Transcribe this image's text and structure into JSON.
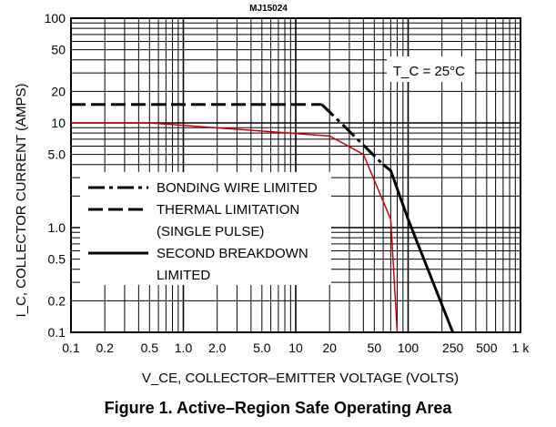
{
  "part_number": "MJ15024",
  "caption": "Figure 1. Active–Region Safe Operating Area",
  "chart_data": {
    "type": "line",
    "title": "MJ15024",
    "xlabel": "V_CE, COLLECTOR–EMITTER VOLTAGE (VOLTS)",
    "ylabel": "I_C, COLLECTOR CURRENT (AMPS)",
    "x_scale": "log",
    "y_scale": "log",
    "xlim": [
      0.1,
      1000
    ],
    "ylim": [
      0.1,
      100
    ],
    "grid": true,
    "x_ticks": [
      {
        "value": 0.1,
        "label": "0.1"
      },
      {
        "value": 0.2,
        "label": "0.2"
      },
      {
        "value": 0.5,
        "label": "0.5"
      },
      {
        "value": 1,
        "label": "1.0"
      },
      {
        "value": 2,
        "label": "2.0"
      },
      {
        "value": 5,
        "label": "5.0"
      },
      {
        "value": 10,
        "label": "10"
      },
      {
        "value": 20,
        "label": "20"
      },
      {
        "value": 50,
        "label": "50"
      },
      {
        "value": 100,
        "label": "100"
      },
      {
        "value": 250,
        "label": "250"
      },
      {
        "value": 500,
        "label": "500"
      },
      {
        "value": 1000,
        "label": "1 k"
      }
    ],
    "y_ticks": [
      {
        "value": 0.1,
        "label": "0.1"
      },
      {
        "value": 0.2,
        "label": "0.2"
      },
      {
        "value": 0.5,
        "label": "0.5"
      },
      {
        "value": 1,
        "label": "1.0"
      },
      {
        "value": 5,
        "label": "5.0"
      },
      {
        "value": 10,
        "label": "10"
      },
      {
        "value": 20,
        "label": "20"
      },
      {
        "value": 50,
        "label": "50"
      },
      {
        "value": 100,
        "label": "100"
      }
    ],
    "annotation": "T_C = 25°C",
    "legend_placement": "bottom-left",
    "legend": [
      {
        "style": "dash-dot",
        "label": "BONDING WIRE LIMITED"
      },
      {
        "style": "dashed",
        "label": "THERMAL LIMITATION"
      },
      {
        "style": "none",
        "label": "(SINGLE PULSE)"
      },
      {
        "style": "solid",
        "label": "SECOND BREAKDOWN"
      },
      {
        "style": "none",
        "label": "LIMITED"
      }
    ],
    "series": [
      {
        "style": "dashed",
        "color": "#000000",
        "x": [
          0.1,
          17
        ],
        "y": [
          15,
          15
        ]
      },
      {
        "style": "dash-dot",
        "color": "#000000",
        "x": [
          17,
          23,
          60
        ],
        "y": [
          15,
          11,
          4.0
        ]
      },
      {
        "style": "solid",
        "color": "#000000",
        "x": [
          60,
          70,
          100,
          250
        ],
        "y": [
          4.0,
          3.5,
          1.2,
          0.1
        ]
      },
      {
        "style": "solid",
        "color": "#cc0000",
        "x": [
          0.1,
          0.5,
          20,
          40,
          70,
          80
        ],
        "y": [
          10,
          10,
          7.5,
          5.0,
          1.2,
          0.1
        ]
      }
    ]
  }
}
